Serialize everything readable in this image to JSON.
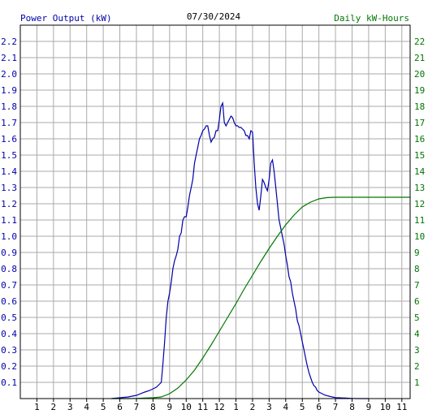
{
  "chart_data": {
    "type": "line",
    "title": "07/30/2024",
    "left_axis_label": "Power Output (kW)",
    "right_axis_label": "Daily kW-Hours",
    "x_tick_labels": [
      "1",
      "2",
      "3",
      "4",
      "5",
      "6",
      "7",
      "8",
      "9",
      "10",
      "11",
      "12",
      "1",
      "2",
      "3",
      "4",
      "5",
      "6",
      "7",
      "8",
      "9",
      "10",
      "11"
    ],
    "xlim": [
      0,
      23.5
    ],
    "ylim_left": [
      0,
      2.3
    ],
    "ylim_right": [
      0,
      23
    ],
    "y_left_ticks": [
      "0.1",
      "0.2",
      "0.3",
      "0.4",
      "0.5",
      "0.6",
      "0.7",
      "0.8",
      "0.9",
      "1.0",
      "1.1",
      "1.2",
      "1.3",
      "1.4",
      "1.5",
      "1.6",
      "1.7",
      "1.8",
      "1.9",
      "2.0",
      "2.1",
      "2.2"
    ],
    "y_right_ticks": [
      "1",
      "2",
      "3",
      "4",
      "5",
      "6",
      "7",
      "8",
      "9",
      "10",
      "11",
      "12",
      "13",
      "14",
      "15",
      "16",
      "17",
      "18",
      "19",
      "20",
      "21",
      "22"
    ],
    "grid": true,
    "colors": {
      "power": "#0000aa",
      "energy": "#007700",
      "grid": "#aaaaaa",
      "background": "#ffffff",
      "axis": "#000000"
    },
    "series": [
      {
        "axis": "left",
        "x": [
          5.5,
          6.0,
          6.5,
          7.0,
          7.5,
          7.8,
          8.0,
          8.2,
          8.3,
          8.4,
          8.5,
          8.6,
          8.7,
          8.8,
          8.9,
          9.0,
          9.1,
          9.2,
          9.3,
          9.4,
          9.5,
          9.6,
          9.7,
          9.8,
          9.9,
          10.0,
          10.1,
          10.2,
          10.3,
          10.4,
          10.5,
          10.6,
          10.7,
          10.8,
          10.9,
          11.0,
          11.1,
          11.2,
          11.3,
          11.4,
          11.5,
          11.6,
          11.7,
          11.8,
          11.9,
          12.0,
          12.1,
          12.2,
          12.3,
          12.4,
          12.5,
          12.6,
          12.7,
          12.8,
          12.9,
          13.0,
          13.1,
          13.2,
          13.3,
          13.4,
          13.5,
          13.6,
          13.7,
          13.8,
          13.9,
          14.0,
          14.1,
          14.2,
          14.3,
          14.4,
          14.5,
          14.6,
          14.7,
          14.8,
          14.9,
          15.0,
          15.1,
          15.2,
          15.3,
          15.4,
          15.5,
          15.6,
          15.7,
          15.8,
          15.9,
          16.0,
          16.1,
          16.2,
          16.3,
          16.4,
          16.5,
          16.6,
          16.7,
          16.8,
          16.9,
          17.0,
          17.1,
          17.2,
          17.3,
          17.4,
          17.5,
          17.6,
          17.7,
          17.8,
          17.9,
          18.0,
          18.1,
          18.2,
          18.3,
          18.4,
          18.5,
          18.6,
          18.7,
          18.8,
          18.9,
          19.0,
          19.2,
          19.4,
          19.6,
          19.8,
          20.0,
          20.3,
          20.6,
          21.0
        ],
        "values": [
          0.0,
          0.005,
          0.01,
          0.02,
          0.04,
          0.05,
          0.06,
          0.07,
          0.08,
          0.09,
          0.1,
          0.22,
          0.35,
          0.5,
          0.6,
          0.65,
          0.72,
          0.8,
          0.85,
          0.88,
          0.92,
          1.0,
          1.02,
          1.1,
          1.12,
          1.12,
          1.18,
          1.25,
          1.3,
          1.35,
          1.45,
          1.5,
          1.55,
          1.6,
          1.62,
          1.65,
          1.66,
          1.68,
          1.68,
          1.62,
          1.58,
          1.6,
          1.61,
          1.65,
          1.65,
          1.72,
          1.8,
          1.82,
          1.7,
          1.68,
          1.7,
          1.72,
          1.74,
          1.73,
          1.7,
          1.68,
          1.68,
          1.67,
          1.67,
          1.66,
          1.65,
          1.62,
          1.62,
          1.6,
          1.65,
          1.64,
          1.45,
          1.3,
          1.2,
          1.16,
          1.25,
          1.35,
          1.33,
          1.3,
          1.28,
          1.35,
          1.45,
          1.47,
          1.4,
          1.3,
          1.2,
          1.1,
          1.05,
          1.0,
          0.95,
          0.88,
          0.82,
          0.75,
          0.72,
          0.65,
          0.6,
          0.55,
          0.48,
          0.45,
          0.4,
          0.35,
          0.3,
          0.25,
          0.2,
          0.16,
          0.13,
          0.1,
          0.08,
          0.07,
          0.05,
          0.04,
          0.035,
          0.03,
          0.025,
          0.02,
          0.018,
          0.015,
          0.012,
          0.01,
          0.008,
          0.006,
          0.005,
          0.004,
          0.003,
          0.002,
          0.001,
          0.0,
          0.0,
          0.0
        ]
      },
      {
        "axis": "right",
        "x": [
          5.5,
          6.0,
          6.5,
          7.0,
          7.5,
          8.0,
          8.5,
          9.0,
          9.5,
          10.0,
          10.5,
          11.0,
          11.5,
          12.0,
          12.5,
          13.0,
          13.5,
          14.0,
          14.5,
          15.0,
          15.5,
          16.0,
          16.5,
          17.0,
          17.5,
          18.0,
          18.5,
          19.0,
          19.5,
          20.0,
          20.5,
          21.0,
          22.0,
          23.0,
          23.5
        ],
        "values": [
          0.0,
          0.0,
          0.0,
          0.01,
          0.03,
          0.05,
          0.1,
          0.3,
          0.65,
          1.15,
          1.75,
          2.5,
          3.3,
          4.15,
          5.0,
          5.85,
          6.75,
          7.6,
          8.45,
          9.25,
          10.0,
          10.7,
          11.3,
          11.8,
          12.1,
          12.3,
          12.38,
          12.4,
          12.4,
          12.4,
          12.4,
          12.4,
          12.4,
          12.4,
          12.4
        ]
      }
    ]
  }
}
